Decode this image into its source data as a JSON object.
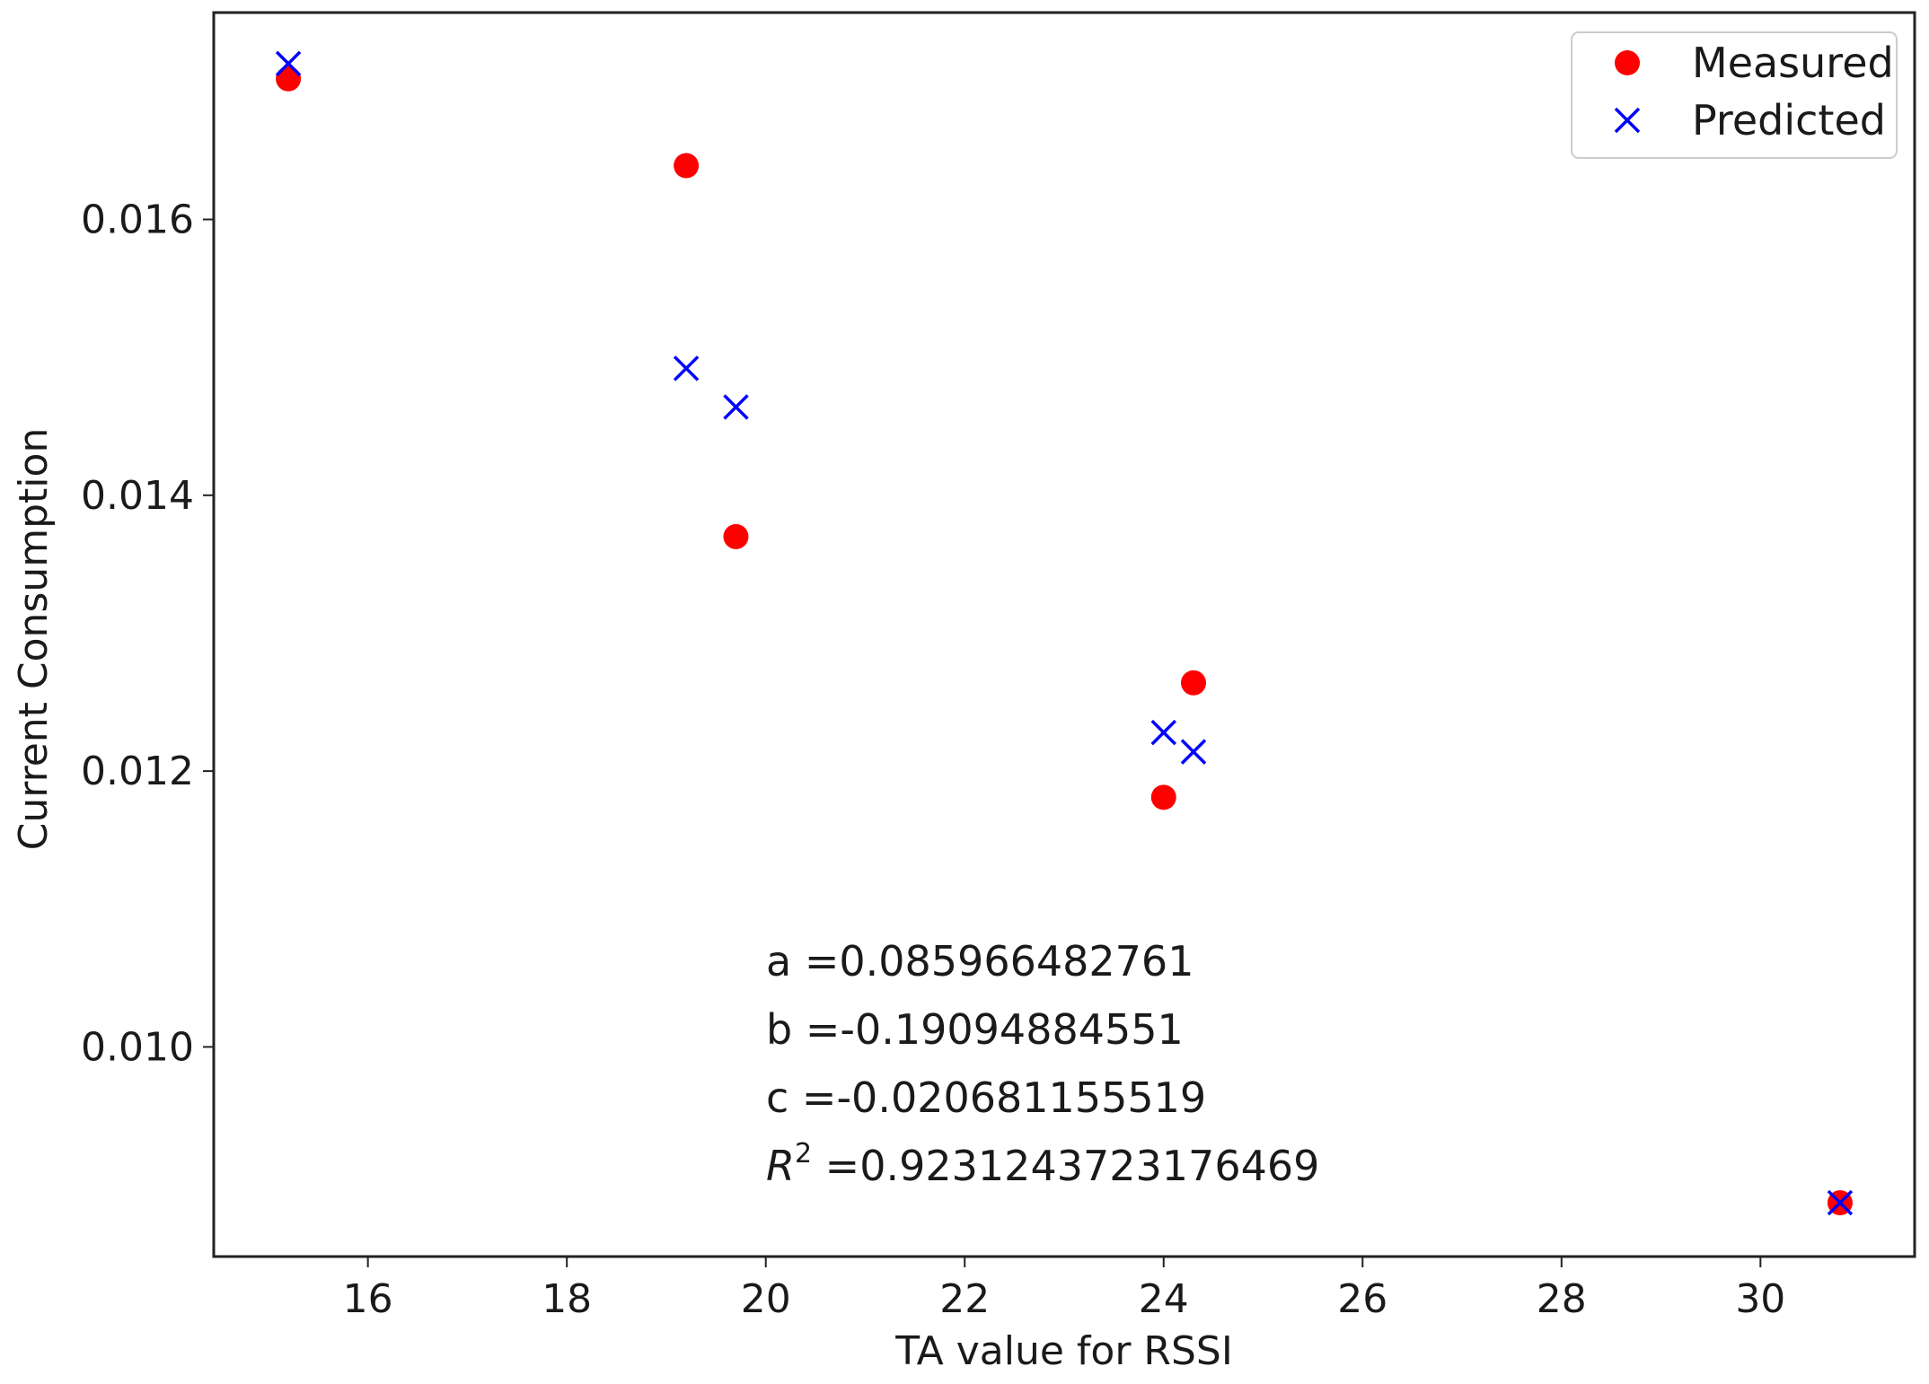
{
  "chart_data": {
    "type": "scatter",
    "title": "",
    "xlabel": "TA value for RSSI",
    "ylabel": "Current Consumption",
    "xlim": [
      14.45,
      31.55
    ],
    "ylim": [
      0.00848,
      0.0175
    ],
    "xticks": [
      16,
      18,
      20,
      22,
      24,
      26,
      28,
      30
    ],
    "xtick_labels": [
      "16",
      "18",
      "20",
      "22",
      "24",
      "26",
      "28",
      "30"
    ],
    "yticks": [
      0.01,
      0.012,
      0.014,
      0.016
    ],
    "ytick_labels": [
      "0.010",
      "0.012",
      "0.014",
      "0.016"
    ],
    "grid": false,
    "legend_position": "top-right",
    "series": [
      {
        "name": "Measured",
        "marker": "circle",
        "color": "#ff0000",
        "points": [
          {
            "x": 15.2,
            "y": 0.01702
          },
          {
            "x": 19.2,
            "y": 0.01639
          },
          {
            "x": 19.7,
            "y": 0.0137
          },
          {
            "x": 24.0,
            "y": 0.01181
          },
          {
            "x": 24.3,
            "y": 0.01264
          },
          {
            "x": 30.8,
            "y": 0.00887
          }
        ]
      },
      {
        "name": "Predicted",
        "marker": "x",
        "color": "#0000ff",
        "points": [
          {
            "x": 15.2,
            "y": 0.01713
          },
          {
            "x": 19.2,
            "y": 0.01492
          },
          {
            "x": 19.7,
            "y": 0.01464
          },
          {
            "x": 24.0,
            "y": 0.01228
          },
          {
            "x": 24.3,
            "y": 0.01214
          },
          {
            "x": 30.8,
            "y": 0.00887
          }
        ]
      }
    ],
    "annotations": [
      {
        "prefix": "a",
        "text": " =0.085966482761"
      },
      {
        "prefix": "b",
        "text": " =-0.19094884551"
      },
      {
        "prefix": "c",
        "text": " =-0.020681155519"
      },
      {
        "prefix": "R",
        "sup": "2",
        "text": " =0.9231243723176469"
      }
    ]
  }
}
